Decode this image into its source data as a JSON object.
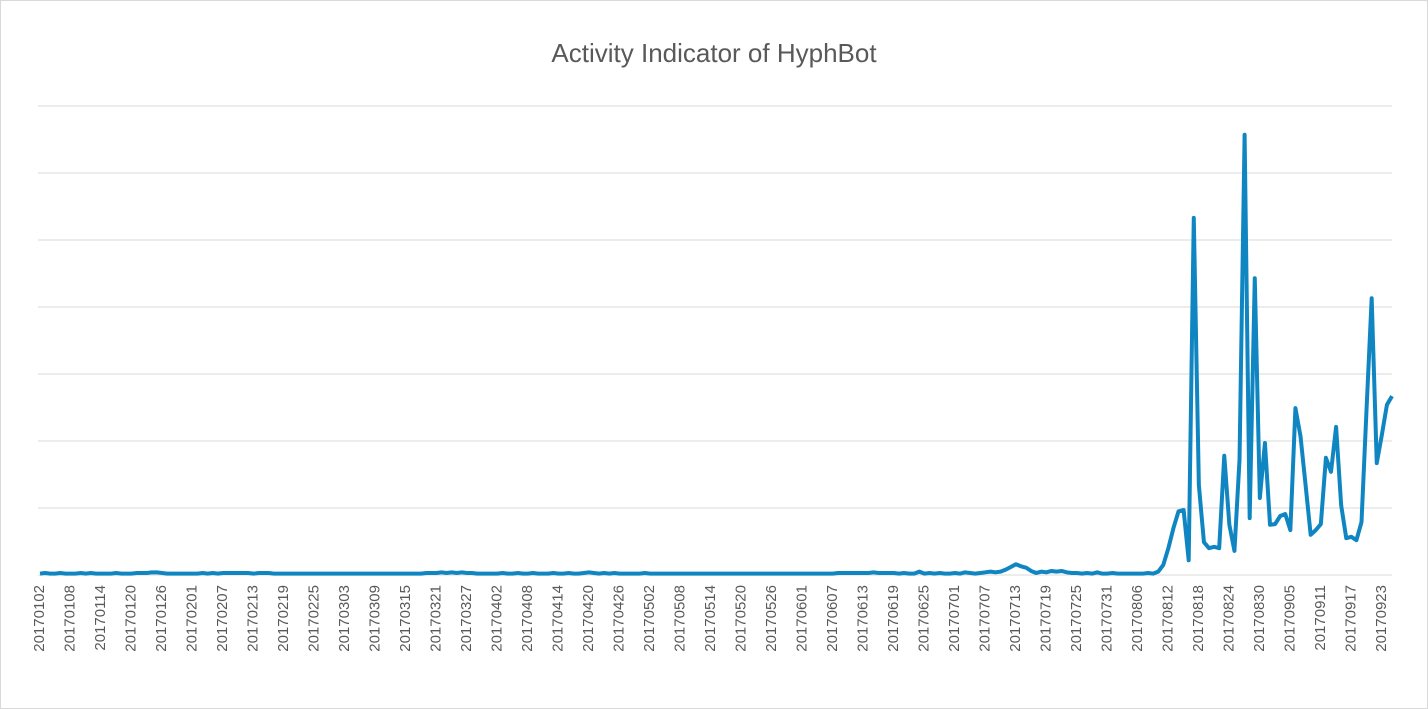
{
  "chart_data": {
    "type": "line",
    "title": "Activity Indicator of HyphBot",
    "categories": [
      "20170102",
      null,
      null,
      null,
      null,
      null,
      "20170108",
      null,
      null,
      null,
      null,
      null,
      "20170114",
      null,
      null,
      null,
      null,
      null,
      "20170120",
      null,
      null,
      null,
      null,
      null,
      "20170126",
      null,
      null,
      null,
      null,
      null,
      "20170201",
      null,
      null,
      null,
      null,
      null,
      "20170207",
      null,
      null,
      null,
      null,
      null,
      "20170213",
      null,
      null,
      null,
      null,
      null,
      "20170219",
      null,
      null,
      null,
      null,
      null,
      "20170225",
      null,
      null,
      null,
      null,
      null,
      "20170303",
      null,
      null,
      null,
      null,
      null,
      "20170309",
      null,
      null,
      null,
      null,
      null,
      "20170315",
      null,
      null,
      null,
      null,
      null,
      "20170321",
      null,
      null,
      null,
      null,
      null,
      "20170327",
      null,
      null,
      null,
      null,
      null,
      "20170402",
      null,
      null,
      null,
      null,
      null,
      "20170408",
      null,
      null,
      null,
      null,
      null,
      "20170414",
      null,
      null,
      null,
      null,
      null,
      "20170420",
      null,
      null,
      null,
      null,
      null,
      "20170426",
      null,
      null,
      null,
      null,
      null,
      "20170502",
      null,
      null,
      null,
      null,
      null,
      "20170508",
      null,
      null,
      null,
      null,
      null,
      "20170514",
      null,
      null,
      null,
      null,
      null,
      "20170520",
      null,
      null,
      null,
      null,
      null,
      "20170526",
      null,
      null,
      null,
      null,
      null,
      "20170601",
      null,
      null,
      null,
      null,
      null,
      "20170607",
      null,
      null,
      null,
      null,
      null,
      "20170613",
      null,
      null,
      null,
      null,
      null,
      "20170619",
      null,
      null,
      null,
      null,
      null,
      "20170625",
      null,
      null,
      null,
      null,
      null,
      "20170701",
      null,
      null,
      null,
      null,
      null,
      "20170707",
      null,
      null,
      null,
      null,
      null,
      "20170713",
      null,
      null,
      null,
      null,
      null,
      "20170719",
      null,
      null,
      null,
      null,
      null,
      "20170725",
      null,
      null,
      null,
      null,
      null,
      "20170731",
      null,
      null,
      null,
      null,
      null,
      "20170806",
      null,
      null,
      null,
      null,
      null,
      "20170812",
      null,
      null,
      null,
      null,
      null,
      "20170818",
      null,
      null,
      null,
      null,
      null,
      "20170824",
      null,
      null,
      null,
      null,
      null,
      "20170830",
      null,
      null,
      null,
      null,
      null,
      "20170905",
      null,
      null,
      null,
      null,
      null,
      "20170911",
      null,
      null,
      null,
      null,
      null,
      "20170917",
      null,
      null,
      null,
      null,
      null,
      "20170923",
      null,
      null
    ],
    "series": [
      {
        "name": "HyphBot",
        "color": "#0f86c2",
        "values": [
          0.02,
          0.03,
          0.02,
          0.02,
          0.03,
          0.02,
          0.02,
          0.02,
          0.03,
          0.02,
          0.03,
          0.02,
          0.02,
          0.02,
          0.02,
          0.03,
          0.02,
          0.02,
          0.02,
          0.03,
          0.03,
          0.03,
          0.04,
          0.04,
          0.03,
          0.02,
          0.02,
          0.02,
          0.02,
          0.02,
          0.02,
          0.02,
          0.03,
          0.02,
          0.03,
          0.02,
          0.03,
          0.03,
          0.03,
          0.03,
          0.03,
          0.03,
          0.02,
          0.03,
          0.03,
          0.03,
          0.02,
          0.02,
          0.02,
          0.02,
          0.02,
          0.02,
          0.02,
          0.02,
          0.02,
          0.02,
          0.02,
          0.02,
          0.02,
          0.02,
          0.02,
          0.02,
          0.02,
          0.02,
          0.02,
          0.02,
          0.02,
          0.02,
          0.02,
          0.02,
          0.02,
          0.02,
          0.02,
          0.02,
          0.02,
          0.02,
          0.03,
          0.03,
          0.03,
          0.04,
          0.03,
          0.04,
          0.03,
          0.04,
          0.03,
          0.03,
          0.02,
          0.02,
          0.02,
          0.02,
          0.02,
          0.03,
          0.02,
          0.02,
          0.03,
          0.02,
          0.02,
          0.03,
          0.02,
          0.02,
          0.02,
          0.03,
          0.02,
          0.02,
          0.03,
          0.02,
          0.02,
          0.03,
          0.04,
          0.03,
          0.02,
          0.03,
          0.02,
          0.03,
          0.02,
          0.02,
          0.02,
          0.02,
          0.02,
          0.03,
          0.02,
          0.02,
          0.02,
          0.02,
          0.02,
          0.02,
          0.02,
          0.02,
          0.02,
          0.02,
          0.02,
          0.02,
          0.02,
          0.02,
          0.02,
          0.02,
          0.02,
          0.02,
          0.02,
          0.02,
          0.02,
          0.02,
          0.02,
          0.02,
          0.02,
          0.02,
          0.02,
          0.02,
          0.02,
          0.02,
          0.02,
          0.02,
          0.02,
          0.02,
          0.02,
          0.02,
          0.02,
          0.03,
          0.03,
          0.03,
          0.03,
          0.03,
          0.03,
          0.03,
          0.04,
          0.03,
          0.03,
          0.03,
          0.03,
          0.02,
          0.03,
          0.02,
          0.02,
          0.05,
          0.02,
          0.03,
          0.02,
          0.03,
          0.02,
          0.02,
          0.03,
          0.02,
          0.04,
          0.03,
          0.02,
          0.03,
          0.04,
          0.05,
          0.04,
          0.05,
          0.08,
          0.12,
          0.16,
          0.13,
          0.11,
          0.06,
          0.03,
          0.05,
          0.04,
          0.06,
          0.05,
          0.06,
          0.04,
          0.03,
          0.03,
          0.02,
          0.03,
          0.02,
          0.04,
          0.02,
          0.02,
          0.03,
          0.02,
          0.02,
          0.02,
          0.02,
          0.02,
          0.02,
          0.03,
          0.02,
          0.05,
          0.15,
          0.4,
          0.7,
          0.95,
          0.97,
          0.22,
          5.33,
          1.34,
          0.49,
          0.4,
          0.42,
          0.4,
          1.78,
          0.75,
          0.36,
          1.72,
          6.57,
          0.85,
          4.43,
          1.15,
          1.97,
          0.75,
          0.76,
          0.88,
          0.91,
          0.67,
          2.49,
          2.07,
          1.34,
          0.6,
          0.67,
          0.76,
          1.75,
          1.54,
          2.21,
          1.04,
          0.55,
          0.57,
          0.52,
          0.79,
          2.49,
          4.13,
          1.67,
          2.09,
          2.54,
          2.67
        ]
      }
    ],
    "ylim": [
      0,
      7
    ],
    "gridlines": [
      0,
      1,
      2,
      3,
      4,
      5,
      6,
      7
    ],
    "grid": true
  }
}
